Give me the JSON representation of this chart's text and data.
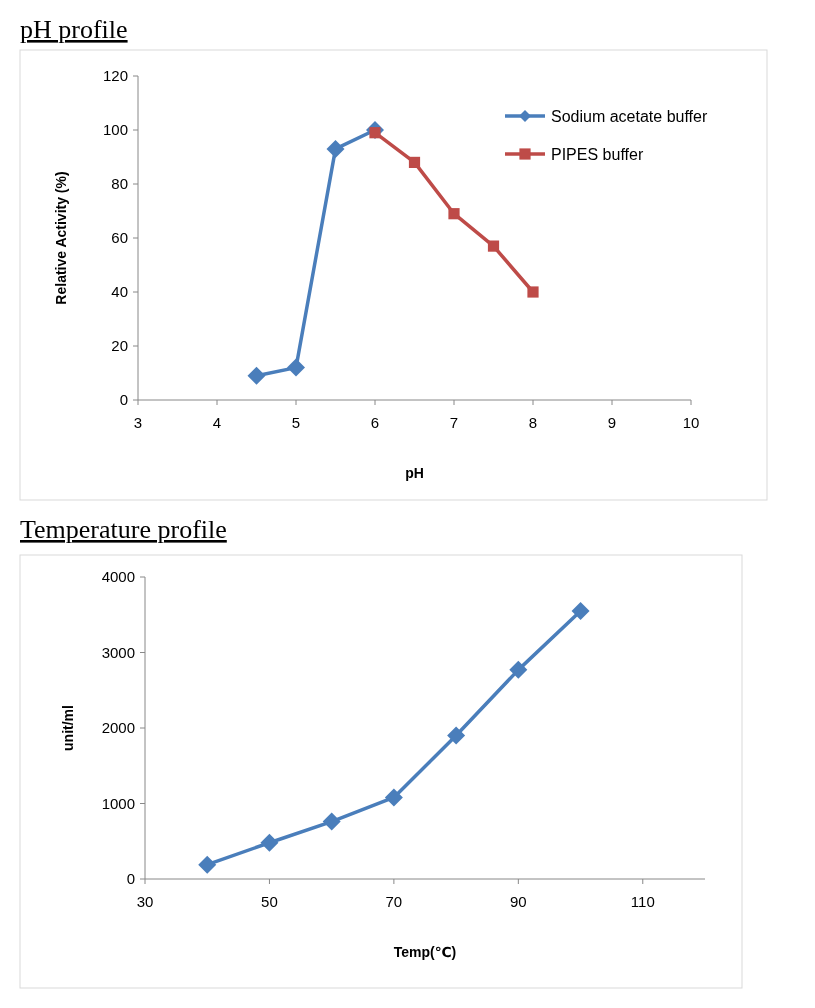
{
  "chart_data": [
    {
      "type": "line",
      "title": "pH profile",
      "xlabel": "pH",
      "ylabel": "Relative Activity (%)",
      "xlim": [
        3,
        10
      ],
      "xticks": [
        3,
        4,
        5,
        6,
        7,
        8,
        9,
        10
      ],
      "ylim": [
        0,
        120
      ],
      "yticks": [
        0,
        20,
        40,
        60,
        80,
        100,
        120
      ],
      "legend": "top right",
      "grid": false,
      "series": [
        {
          "name": "Sodium acetate buffer",
          "color": "#4a7ebb",
          "marker": "diamond",
          "x": [
            4.5,
            5,
            5.5,
            6
          ],
          "values": [
            9,
            12,
            93,
            100
          ]
        },
        {
          "name": "PIPES buffer",
          "color": "#be4b48",
          "marker": "square",
          "x": [
            6,
            6.5,
            7,
            7.5,
            8
          ],
          "values": [
            99,
            88,
            69,
            57,
            40
          ]
        }
      ]
    },
    {
      "type": "line",
      "title": "Temperature profile",
      "xlabel": "Temp(℃)",
      "ylabel": "unit/ml",
      "xlim": [
        30,
        120
      ],
      "xticks": [
        30,
        50,
        70,
        90,
        110
      ],
      "ylim": [
        0,
        4000
      ],
      "yticks": [
        0,
        1000,
        2000,
        3000,
        4000
      ],
      "grid": false,
      "series": [
        {
          "color": "#4a7ebb",
          "marker": "diamond",
          "x": [
            40,
            50,
            60,
            70,
            80,
            90,
            100
          ],
          "values": [
            190,
            480,
            760,
            1080,
            1900,
            2770,
            3550
          ]
        }
      ]
    }
  ]
}
